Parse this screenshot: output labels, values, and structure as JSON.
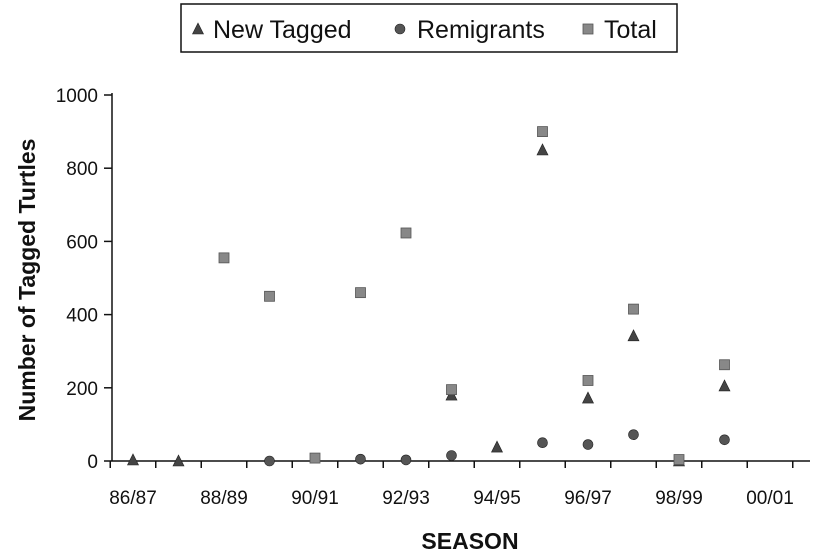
{
  "chart_data": {
    "type": "scatter",
    "xlabel": "SEASON",
    "ylabel": "Number of Tagged Turtles",
    "ylim": [
      0,
      1000
    ],
    "yticks": [
      0,
      200,
      400,
      600,
      800,
      1000
    ],
    "xticks": [
      "86/87",
      "88/89",
      "90/91",
      "92/93",
      "94/95",
      "96/97",
      "98/99",
      "00/01"
    ],
    "grid": false,
    "legend_position": "top-center",
    "series": [
      {
        "name": "New Tagged",
        "marker": "triangle",
        "color": "#444444",
        "points": [
          {
            "x": "86/87",
            "y": 3
          },
          {
            "x": "87/88",
            "y": 0
          },
          {
            "x": "93/94",
            "y": 180
          },
          {
            "x": "94/95",
            "y": 38
          },
          {
            "x": "95/96",
            "y": 850
          },
          {
            "x": "96/97",
            "y": 172
          },
          {
            "x": "97/98",
            "y": 342
          },
          {
            "x": "98/99",
            "y": 0
          },
          {
            "x": "99/00",
            "y": 205
          }
        ]
      },
      {
        "name": "Remigrants",
        "marker": "circle",
        "color": "#555555",
        "points": [
          {
            "x": "89/90",
            "y": 0
          },
          {
            "x": "91/92",
            "y": 5
          },
          {
            "x": "92/93",
            "y": 3
          },
          {
            "x": "93/94",
            "y": 15
          },
          {
            "x": "95/96",
            "y": 50
          },
          {
            "x": "96/97",
            "y": 45
          },
          {
            "x": "97/98",
            "y": 72
          },
          {
            "x": "99/00",
            "y": 58
          }
        ]
      },
      {
        "name": "Total",
        "marker": "square",
        "color": "#888888",
        "points": [
          {
            "x": "88/89",
            "y": 555
          },
          {
            "x": "89/90",
            "y": 450
          },
          {
            "x": "90/91",
            "y": 8
          },
          {
            "x": "91/92",
            "y": 460
          },
          {
            "x": "92/93",
            "y": 623
          },
          {
            "x": "93/94",
            "y": 195
          },
          {
            "x": "95/96",
            "y": 900
          },
          {
            "x": "96/97",
            "y": 220
          },
          {
            "x": "97/98",
            "y": 415
          },
          {
            "x": "98/99",
            "y": 4
          },
          {
            "x": "99/00",
            "y": 263
          }
        ]
      }
    ]
  }
}
